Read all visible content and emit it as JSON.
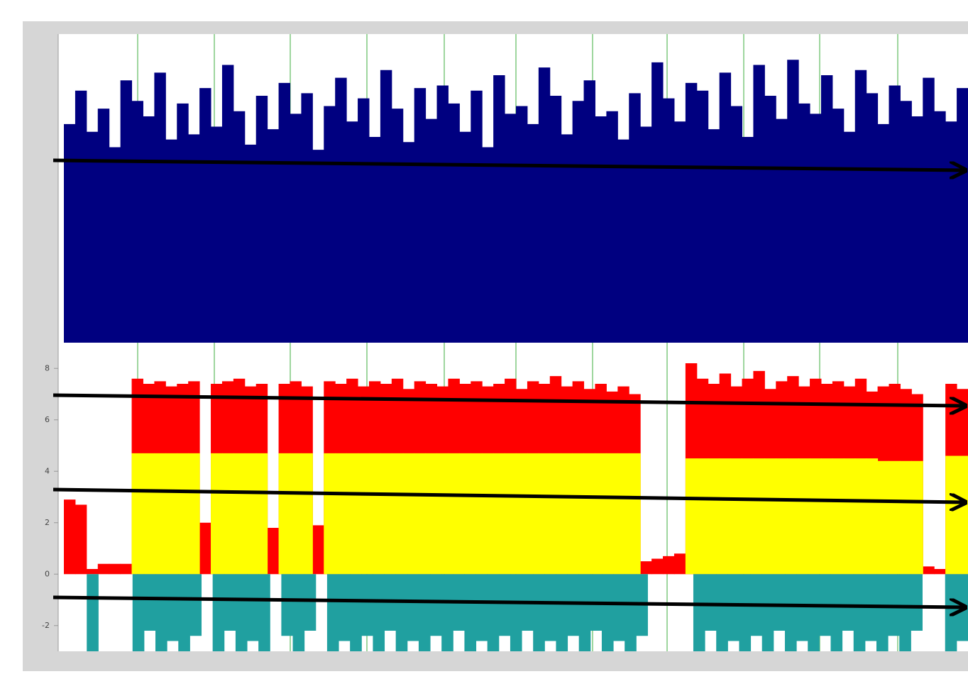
{
  "chart_data": {
    "type": "bar",
    "ylim": [
      -3,
      21
    ],
    "yticks": [
      -2,
      0,
      2,
      4,
      6,
      8
    ],
    "y2lim": [
      0,
      12
    ],
    "series": [
      {
        "color": "#000080",
        "axis": "y2",
        "values": [
          8.5,
          9.8,
          8.2,
          9.1,
          7.6,
          10.2,
          9.4,
          8.8,
          10.5,
          7.9,
          9.3,
          8.1,
          9.9,
          8.4,
          10.8,
          9.0,
          7.7,
          9.6,
          8.3,
          10.1,
          8.9,
          9.7,
          7.5,
          9.2,
          10.3,
          8.6,
          9.5,
          8.0,
          10.6,
          9.1,
          7.8,
          9.9,
          8.7,
          10.0,
          9.3,
          8.2,
          9.8,
          7.6,
          10.4,
          8.9,
          9.2,
          8.5,
          10.7,
          9.6,
          8.1,
          9.4,
          10.2,
          8.8,
          9.0,
          7.9,
          9.7,
          8.4,
          10.9,
          9.5,
          8.6,
          10.1,
          9.8,
          8.3,
          10.5,
          9.2,
          8.0,
          10.8,
          9.6,
          8.7,
          11.0,
          9.3,
          8.9,
          10.4,
          9.1,
          8.2,
          10.6,
          9.7,
          8.5,
          10.0,
          9.4,
          8.8,
          10.3,
          9.0,
          8.6,
          9.9
        ]
      },
      {
        "color": "#ff0000",
        "values": [
          2.9,
          2.7,
          0.2,
          0.4,
          0.4,
          0.4,
          7.6,
          7.4,
          7.5,
          7.3,
          7.4,
          7.5,
          2.0,
          7.4,
          7.5,
          7.6,
          7.3,
          7.4,
          1.8,
          7.4,
          7.5,
          7.3,
          1.9,
          7.5,
          7.4,
          7.6,
          7.3,
          7.5,
          7.4,
          7.6,
          7.2,
          7.5,
          7.4,
          7.3,
          7.6,
          7.4,
          7.5,
          7.3,
          7.4,
          7.6,
          7.2,
          7.5,
          7.4,
          7.7,
          7.3,
          7.5,
          7.2,
          7.4,
          7.1,
          7.3,
          7.0,
          0.5,
          0.6,
          0.7,
          0.8,
          8.2,
          7.6,
          7.4,
          7.8,
          7.3,
          7.6,
          7.9,
          7.2,
          7.5,
          7.7,
          7.3,
          7.6,
          7.4,
          7.5,
          7.3,
          7.6,
          7.1,
          7.3,
          7.4,
          7.2,
          7.0,
          0.3,
          0.2,
          7.4,
          7.2
        ]
      },
      {
        "color": "#ffff00",
        "values": [
          0,
          0,
          0,
          0,
          0,
          0,
          4.7,
          4.7,
          4.7,
          4.7,
          4.7,
          4.7,
          0,
          4.7,
          4.7,
          4.7,
          4.7,
          4.7,
          0,
          4.7,
          4.7,
          4.7,
          0,
          4.7,
          4.7,
          4.7,
          4.7,
          4.7,
          4.7,
          4.7,
          4.7,
          4.7,
          4.7,
          4.7,
          4.7,
          4.7,
          4.7,
          4.7,
          4.7,
          4.7,
          4.7,
          4.7,
          4.7,
          4.7,
          4.7,
          4.7,
          4.7,
          4.7,
          4.7,
          4.7,
          4.7,
          0,
          0,
          0,
          0,
          4.5,
          4.5,
          4.5,
          4.5,
          4.5,
          4.5,
          4.5,
          4.5,
          4.5,
          4.5,
          4.5,
          4.5,
          4.5,
          4.5,
          4.5,
          4.5,
          4.5,
          4.4,
          4.4,
          4.4,
          4.4,
          0,
          0,
          4.6,
          4.6
        ]
      },
      {
        "color": "#20a0a0",
        "values": [
          0,
          0,
          -3,
          0,
          0,
          0,
          -3,
          -2.2,
          -3,
          -2.6,
          -3,
          -2.4,
          0,
          -3,
          -2.2,
          -3,
          -2.6,
          -3,
          0,
          -2.4,
          -3,
          -2.2,
          0,
          -3,
          -2.6,
          -3,
          -2.4,
          -3,
          -2.2,
          -3,
          -2.6,
          -3,
          -2.4,
          -3,
          -2.2,
          -3,
          -2.6,
          -3,
          -2.4,
          -3,
          -2.2,
          -3,
          -2.6,
          -3,
          -2.4,
          -3,
          -2.2,
          -3,
          -2.6,
          -3,
          -2.4,
          0,
          0,
          0,
          0,
          -3,
          -2.2,
          -3,
          -2.6,
          -3,
          -2.4,
          -3,
          -2.2,
          -3,
          -2.6,
          -3,
          -2.4,
          -3,
          -2.2,
          -3,
          -2.6,
          -3,
          -2.4,
          -3,
          -2.2,
          0,
          0,
          -3,
          -2.6
        ]
      }
    ]
  }
}
